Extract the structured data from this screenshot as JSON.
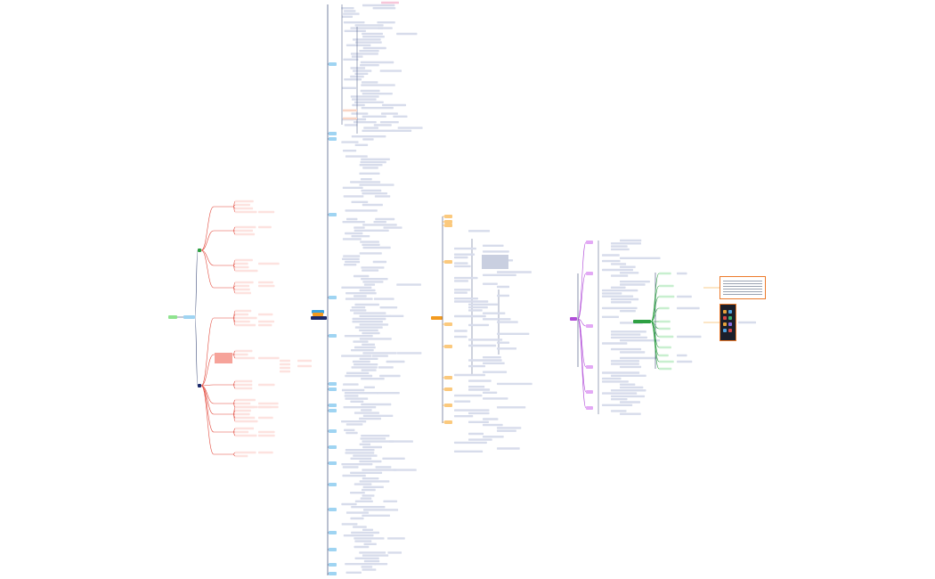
{
  "map": {
    "title": "",
    "colors": {
      "line": "#3b4a78",
      "leaf": "#d7dceb",
      "red_branch": "#e2483b",
      "red_leaf": "#fde2df",
      "blue": "#3aa3e0",
      "orange": "#f39a1e",
      "green": "#2ea043",
      "purple": "#b14ed8",
      "navy": "#1b2a6b"
    },
    "clusters": [
      {
        "name": "left-cluster",
        "accent": "red"
      },
      {
        "name": "center-cluster",
        "accent": "blue"
      },
      {
        "name": "right-center-cluster",
        "accent": "orange"
      },
      {
        "name": "right-cluster",
        "accent": "purple-green"
      }
    ],
    "icons": [
      "phone-screenshot-icon",
      "table-screenshot-icon"
    ]
  }
}
